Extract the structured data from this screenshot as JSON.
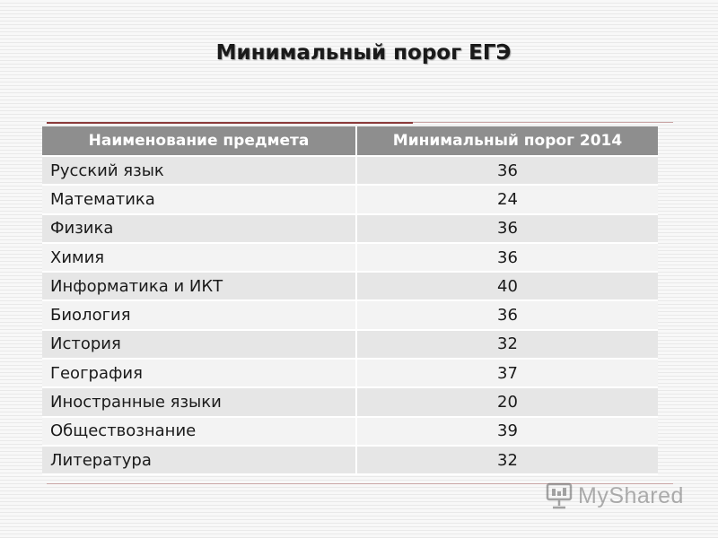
{
  "slide": {
    "title": "Минимальный порог ЕГЭ"
  },
  "table": {
    "headers": [
      "Наименование предмета",
      "Минимальный порог 2014"
    ],
    "rows": [
      {
        "subject": "Русский язык",
        "value": "36"
      },
      {
        "subject": "Математика",
        "value": "24"
      },
      {
        "subject": "Физика",
        "value": "36"
      },
      {
        "subject": "Химия",
        "value": "36"
      },
      {
        "subject": "Информатика и ИКТ",
        "value": "40"
      },
      {
        "subject": "Биология",
        "value": "36"
      },
      {
        "subject": "История",
        "value": "32"
      },
      {
        "subject": "География",
        "value": "37"
      },
      {
        "subject": "Иностранные языки",
        "value": "20"
      },
      {
        "subject": "Обществознание",
        "value": "39"
      },
      {
        "subject": "Литература",
        "value": "32"
      }
    ]
  },
  "watermark": {
    "text": "MyShared",
    "icon": "podium-icon"
  },
  "colors": {
    "header_bg": "#8e8e8e",
    "row_odd": "#e6e6e6",
    "row_even": "#f3f3f3",
    "accent_rule": "#8a3a3a"
  }
}
